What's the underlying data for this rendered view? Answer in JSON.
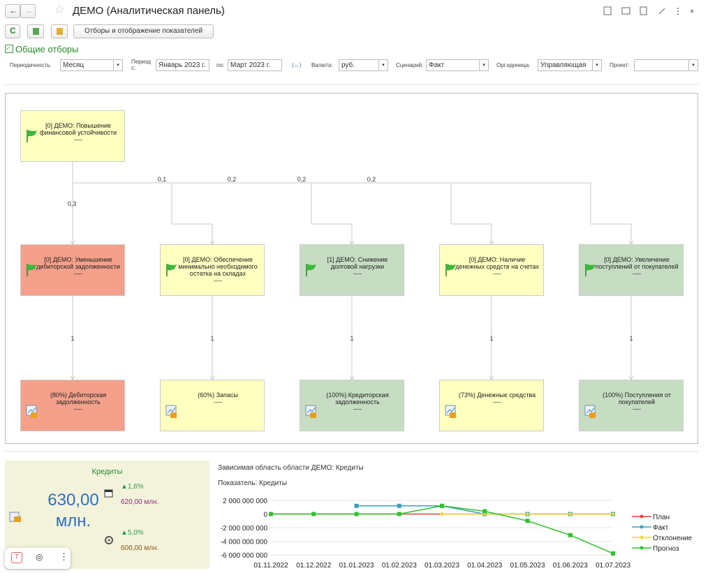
{
  "header": {
    "title": "ДЕМО (Аналитическая панель)"
  },
  "toolbar": {
    "button": "Отборы и отображение показателей"
  },
  "filters": {
    "title": "Общие отборы",
    "swap": "(↔)",
    "items": [
      {
        "label": "Периодичность:",
        "value": "Месяц"
      },
      {
        "label": "Период с:",
        "value": "Январь 2023 г."
      },
      {
        "label": "по:",
        "value": "Март 2023 г."
      },
      {
        "label": "Валюта:",
        "value": "руб."
      },
      {
        "label": "Сценарий:",
        "value": "Факт"
      },
      {
        "label": "Орг.единица:",
        "value": "Управляющая"
      },
      {
        "label": "Проект:"
      }
    ]
  },
  "diagram": {
    "root": {
      "label": "[0] ДЕМО: Повышение финансовой устойчивости",
      "sub": "----",
      "color": "#ffffc0"
    },
    "goals": [
      {
        "label": "[0] ДЕМО: Уменьшение дебиторской задолженности",
        "sub": "----",
        "color": "#f4a08a",
        "weight": "0,3"
      },
      {
        "label": "[0] ДЕМО: Обеспечение минимально необходимого остатка на складах",
        "sub": "----",
        "color": "#ffffc0",
        "weight": "0,1"
      },
      {
        "label": "[1] ДЕМО: Снижение долговой нагрузки",
        "sub": "----",
        "color": "#c6ddc3",
        "weight": "0,2"
      },
      {
        "label": "[0] ДЕМО: Наличие денежных средств на счетах",
        "sub": "----",
        "color": "#ffffc0",
        "weight": "0,2"
      },
      {
        "label": "[0] ДЕМО: Увеличение поступлений от покупателей",
        "sub": "----",
        "color": "#c6ddc3",
        "weight": "0,2"
      }
    ],
    "indicators": [
      {
        "label": "(80%) Дебиторская задолженность",
        "sub": "----",
        "color": "#f4a08a",
        "weight": "1"
      },
      {
        "label": "(60%) Запасы",
        "sub": "----",
        "color": "#ffffc0",
        "weight": "1"
      },
      {
        "label": "(100%) Кредиторская задолженность",
        "sub": "----",
        "color": "#c6ddc3",
        "weight": "1"
      },
      {
        "label": "(73%) Денежные средства",
        "sub": "----",
        "color": "#ffffc0",
        "weight": "1"
      },
      {
        "label": "(100%) Поступления от покупателей",
        "sub": "----",
        "color": "#c6ddc3",
        "weight": "1"
      }
    ]
  },
  "widget": {
    "title": "Кредиты",
    "value": "630,00 млн.",
    "plan_change": "▲1,6%",
    "plan": "620,00 млн.",
    "target_change": "▲5,0%",
    "target": "600,00 млн."
  },
  "chart": {
    "type": "line",
    "title": "Зависимая область области ДЕМО: Кредиты",
    "subtitle": "Показатель: Кредиты",
    "categories": [
      "01.11.2022",
      "01.12.2022",
      "01.01.2023",
      "01.02.2023",
      "01.03.2023",
      "01.04.2023",
      "01.05.2023",
      "01.06.2023",
      "01.07.2023"
    ],
    "series": [
      {
        "name": "План",
        "color": "#e8413c",
        "values": [
          0,
          0,
          0,
          0,
          0,
          0,
          0,
          0,
          0
        ]
      },
      {
        "name": "Факт",
        "color": "#3aa0b8",
        "values": [
          null,
          null,
          1200000000,
          1200000000,
          1200000000,
          0,
          0,
          0,
          0
        ]
      },
      {
        "name": "Отклонение",
        "color": "#f2dc2a",
        "values": [
          null,
          null,
          null,
          null,
          0,
          0,
          0,
          0,
          0
        ]
      },
      {
        "name": "Прогноз",
        "color": "#2ec32e",
        "values": [
          0,
          0,
          0,
          0,
          1200000000,
          400000000,
          -1000000000,
          -3100000000,
          -5800000000
        ]
      }
    ],
    "ylim": [
      -6000000000,
      2000000000
    ],
    "yticks": [
      {
        "value": 2000000000,
        "label": "2 000 000 000"
      },
      0,
      {
        "value": -2000000000,
        "label": "-2 000 000 000"
      },
      {
        "value": -4000000000,
        "label": "-4 000 000 000"
      },
      {
        "value": -6000000000,
        "label": "-6 000 000 000"
      }
    ],
    "grid": true,
    "legend": "right"
  }
}
